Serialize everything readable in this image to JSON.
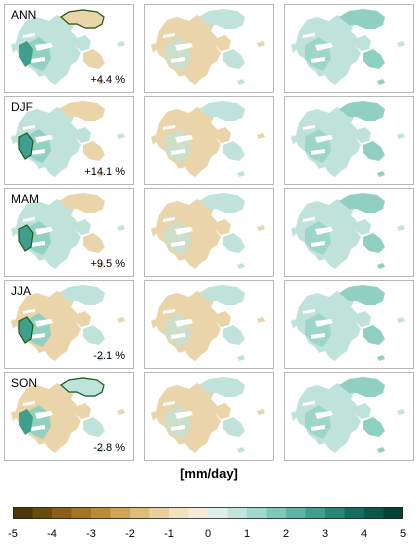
{
  "rows": [
    {
      "season": "ANN",
      "change": "+4.4 %"
    },
    {
      "season": "DJF",
      "change": "+14.1 %"
    },
    {
      "season": "MAM",
      "change": "+9.5 %"
    },
    {
      "season": "JJA",
      "change": "-2.1 %"
    },
    {
      "season": "SON",
      "change": "-2.8 %"
    }
  ],
  "units_label": "[mm/day]",
  "colorbar": {
    "tick_labels": [
      "-5",
      "-4",
      "-3",
      "-2",
      "-1",
      "0",
      "1",
      "2",
      "3",
      "4",
      "5"
    ],
    "colors": [
      "#4e3506",
      "#6b4a0e",
      "#8a5f19",
      "#a57425",
      "#bd8a36",
      "#cfa455",
      "#dcbd7a",
      "#e7d09c",
      "#f0e2bf",
      "#f3ebd8",
      "#dcefea",
      "#bfe5dd",
      "#9fd8cc",
      "#7dc8b9",
      "#5db6a4",
      "#3f9f8c",
      "#278773",
      "#156e5c",
      "#0a5848",
      "#044335"
    ]
  },
  "colors": {
    "dry": "#e9d5a9",
    "wet_light": "#bfe3da",
    "wet_mid": "#8fd0c1",
    "wet_strong": "#3f9f8c",
    "significance": "#1e5a1e"
  }
}
